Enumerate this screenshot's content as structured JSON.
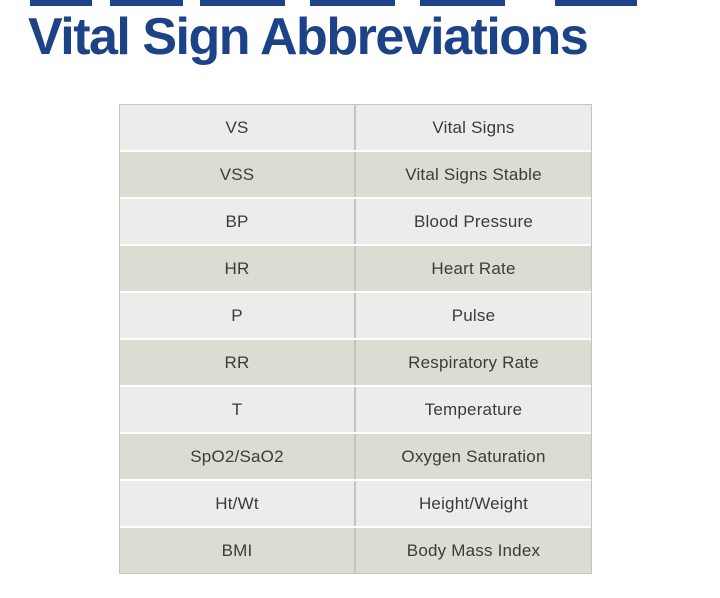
{
  "title": "Vital Sign Abbreviations",
  "colors": {
    "title_color": "#1C4387",
    "row_light": "#ECECEA",
    "row_dark": "#DCDCD2",
    "table_border": "#C4C4C0",
    "cell_text": "#3B3B3B",
    "background": "#FFFFFF"
  },
  "table": {
    "rows": [
      {
        "abbr": "VS",
        "meaning": "Vital Signs"
      },
      {
        "abbr": "VSS",
        "meaning": "Vital Signs Stable"
      },
      {
        "abbr": "BP",
        "meaning": "Blood Pressure"
      },
      {
        "abbr": "HR",
        "meaning": "Heart Rate"
      },
      {
        "abbr": "P",
        "meaning": "Pulse"
      },
      {
        "abbr": "RR",
        "meaning": "Respiratory Rate"
      },
      {
        "abbr": "T",
        "meaning": "Temperature"
      },
      {
        "abbr": "SpO2/SaO2",
        "meaning": "Oxygen Saturation"
      },
      {
        "abbr": "Ht/Wt",
        "meaning": "Height/Weight"
      },
      {
        "abbr": "BMI",
        "meaning": "Body Mass Index"
      }
    ]
  }
}
